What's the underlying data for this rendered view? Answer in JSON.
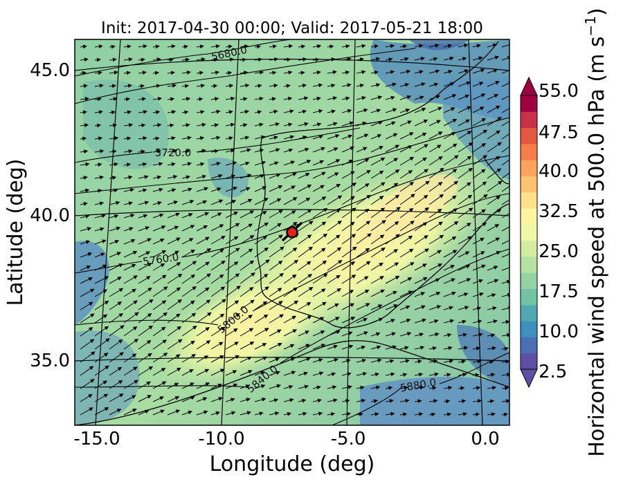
{
  "title": "Init: 2017-04-30 00:00; Valid: 2017-05-21 18:00",
  "chart_data": {
    "type": "map",
    "title": "Init: 2017-04-30 00:00; Valid: 2017-05-21 18:00",
    "xlabel": "Longitude (deg)",
    "ylabel": "Latitude (deg)",
    "x_ticks": [
      "-15.0",
      "-10.0",
      "-5.0",
      "0.0"
    ],
    "y_ticks": [
      "45.0",
      "40.0",
      "35.0"
    ],
    "xlim": [
      -16.1,
      0.3
    ],
    "ylim": [
      32.8,
      46.0
    ],
    "field": "Horizontal wind speed at 500.0 hPa (m s^-1)",
    "colorbar": {
      "label": "Horizontal wind speed at 500.0 hPa (m s",
      "label_sup": "−1",
      "label_close": ")",
      "ticks": [
        "55.0",
        "47.5",
        "40.0",
        "32.5",
        "25.0",
        "17.5",
        "10.0",
        "2.5"
      ],
      "range": [
        2.5,
        55.0
      ],
      "colors": [
        "#5e4fa2",
        "#4a6fb4",
        "#3f8fbf",
        "#52a8b0",
        "#72c3a6",
        "#93d3a4",
        "#b5e2a2",
        "#d3eda0",
        "#eff8a6",
        "#fbf4a3",
        "#fee08b",
        "#fdc272",
        "#fca35d",
        "#f57d4a",
        "#e4583f",
        "#c9314a",
        "#9e0142"
      ]
    },
    "height_contours": [
      "5680.0",
      "5720.0",
      "5760.0",
      "5800.0",
      "5840.0",
      "5880.0"
    ],
    "marker": {
      "lon": -7.6,
      "lat": 39.3,
      "color": "#e8201c"
    },
    "wind_direction": "southwesterly"
  }
}
